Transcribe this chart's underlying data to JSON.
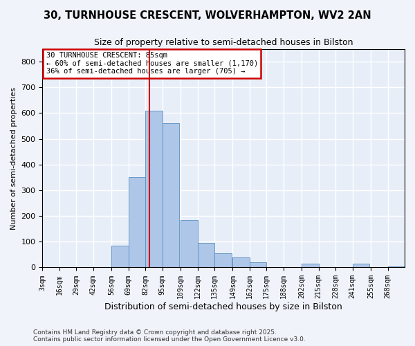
{
  "title_line1": "30, TURNHOUSE CRESCENT, WOLVERHAMPTON, WV2 2AN",
  "title_line2": "Size of property relative to semi-detached houses in Bilston",
  "xlabel": "Distribution of semi-detached houses by size in Bilston",
  "ylabel": "Number of semi-detached properties",
  "property_size": 85,
  "annotation_line1": "30 TURNHOUSE CRESCENT: 85sqm",
  "annotation_line2": "← 60% of semi-detached houses are smaller (1,170)",
  "annotation_line3": "36% of semi-detached houses are larger (705) →",
  "bins": [
    3,
    16,
    29,
    42,
    56,
    69,
    82,
    95,
    109,
    122,
    135,
    149,
    162,
    175,
    188,
    202,
    215,
    228,
    241,
    255,
    268,
    281
  ],
  "bin_labels": [
    "3sqm",
    "16sqm",
    "29sqm",
    "42sqm",
    "56sqm",
    "69sqm",
    "82sqm",
    "95sqm",
    "109sqm",
    "122sqm",
    "135sqm",
    "149sqm",
    "162sqm",
    "175sqm",
    "188sqm",
    "202sqm",
    "215sqm",
    "228sqm",
    "241sqm",
    "255sqm",
    "268sqm"
  ],
  "counts": [
    0,
    0,
    0,
    0,
    85,
    350,
    610,
    560,
    185,
    95,
    55,
    40,
    20,
    0,
    0,
    15,
    0,
    0,
    15,
    0,
    5
  ],
  "bar_color": "#aec6e8",
  "bar_edge_color": "#5a8fc0",
  "vline_color": "#cc0000",
  "box_edge_color": "#cc0000",
  "fig_background_color": "#f0f4fa",
  "ax_background_color": "#e8eef8",
  "grid_color": "#ffffff",
  "ylim": [
    0,
    850
  ],
  "yticks": [
    0,
    100,
    200,
    300,
    400,
    500,
    600,
    700,
    800
  ],
  "footer_line1": "Contains HM Land Registry data © Crown copyright and database right 2025.",
  "footer_line2": "Contains public sector information licensed under the Open Government Licence v3.0."
}
